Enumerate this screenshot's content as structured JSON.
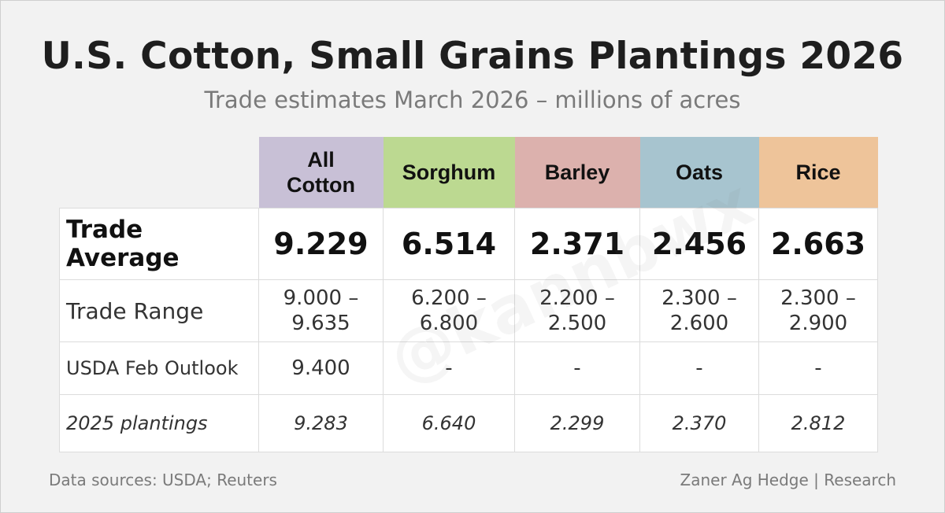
{
  "title": "U.S. Cotton, Small Grains Plantings 2026",
  "subtitle": "Trade estimates March 2026 – millions of acres",
  "columns": [
    {
      "label": "All\nCotton",
      "color": "#c8c0d6"
    },
    {
      "label": "Sorghum",
      "color": "#bcd991"
    },
    {
      "label": "Barley",
      "color": "#dcb1ad"
    },
    {
      "label": "Oats",
      "color": "#a7c4cf"
    },
    {
      "label": "Rice",
      "color": "#eec49a"
    }
  ],
  "rows": {
    "trade_average": {
      "label": "Trade Average",
      "values": [
        "9.229",
        "6.514",
        "2.371",
        "2.456",
        "2.663"
      ]
    },
    "trade_range": {
      "label": "Trade Range",
      "values": [
        [
          "9.000 –",
          "9.635"
        ],
        [
          "6.200 –",
          "6.800"
        ],
        [
          "2.200 –",
          "2.500"
        ],
        [
          "2.300 –",
          "2.600"
        ],
        [
          "2.300 –",
          "2.900"
        ]
      ]
    },
    "usda_feb": {
      "label": "USDA Feb Outlook",
      "values": [
        "9.400",
        "-",
        "-",
        "-",
        "-"
      ]
    },
    "plantings_2025": {
      "label": "2025 plantings",
      "values": [
        "9.283",
        "6.640",
        "2.299",
        "2.370",
        "2.812"
      ]
    }
  },
  "watermark": "@kannbwx",
  "footer": {
    "sources": "Data sources: USDA; Reuters",
    "credit": "Zaner Ag Hedge | Research"
  }
}
